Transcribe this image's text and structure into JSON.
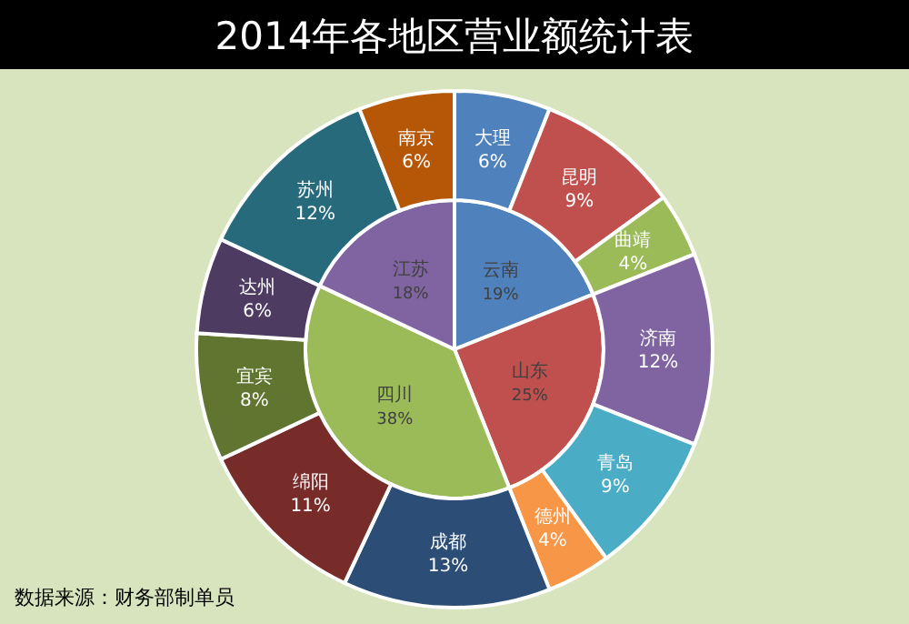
{
  "chart_data": [
    {
      "type": "pie",
      "title": "2014年各地区营业额统计表",
      "annotations": [
        "数据来源：财务部制单员"
      ],
      "categories": [
        "云南",
        "山东",
        "四川",
        "江苏"
      ],
      "values": [
        19,
        25,
        38,
        18
      ],
      "value_labels": [
        "19%",
        "25%",
        "38%",
        "18%"
      ],
      "colors": [
        "#4f81bd",
        "#c0504d",
        "#9bbb59",
        "#8064a2"
      ]
    },
    {
      "type": "donut",
      "categories": [
        "大理",
        "昆明",
        "曲靖",
        "济南",
        "青岛",
        "德州",
        "成都",
        "绵阳",
        "宜宾",
        "达州",
        "苏州",
        "南京"
      ],
      "values": [
        6,
        9,
        4,
        12,
        9,
        4,
        13,
        11,
        8,
        6,
        12,
        6
      ],
      "value_labels": [
        "6%",
        "9%",
        "4%",
        "12%",
        "9%",
        "4%",
        "13%",
        "11%",
        "8%",
        "6%",
        "12%",
        "6%"
      ],
      "colors": [
        "#4f81bd",
        "#c0504d",
        "#9bbb59",
        "#8064a2",
        "#4bacc6",
        "#f79646",
        "#2c4d75",
        "#772c2a",
        "#5f7530",
        "#4d3b62",
        "#276a7c",
        "#b65708"
      ]
    }
  ]
}
